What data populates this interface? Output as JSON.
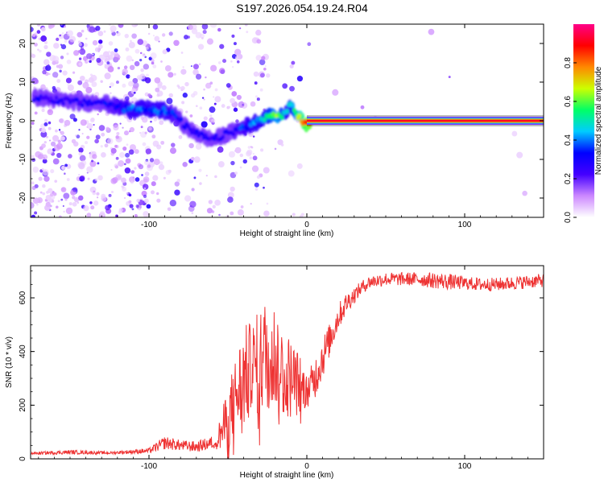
{
  "figure_title": "S197.2026.054.19.24.R04",
  "chart_data": [
    {
      "type": "heatmap",
      "title": "S197.2026.054.19.24.R04",
      "xlabel": "Height of straight line (km)",
      "ylabel": "Frequency (Hz)",
      "xlim": [
        -175,
        150
      ],
      "ylim": [
        -25,
        25
      ],
      "xticks": [
        -100,
        0,
        100
      ],
      "yticks": [
        -20,
        -10,
        0,
        10,
        20
      ],
      "colorbar": {
        "label": "Normalized spectral amplitude",
        "range": [
          0,
          1
        ],
        "ticks": [
          0.0,
          0.2,
          0.4,
          0.6,
          0.8
        ],
        "tick_labels": [
          "0.0",
          "0.2",
          "0.4",
          "0.6",
          "0.8"
        ],
        "colormap": [
          "#ffffff",
          "#cc88ff",
          "#4400ff",
          "#0000ff",
          "#00ccff",
          "#00ff66",
          "#ccff00",
          "#ff8800",
          "#ff0000",
          "#ff0088"
        ]
      },
      "ridge": {
        "x": [
          -170,
          -160,
          -150,
          -140,
          -132,
          -120,
          -110,
          -100,
          -90,
          -84,
          -78,
          -72,
          -66,
          -60,
          -54,
          -48,
          -42,
          -36,
          -30,
          -26,
          -22,
          -18,
          -14,
          -10,
          -6,
          -2,
          0,
          5,
          20,
          50,
          100,
          150
        ],
        "freq": [
          6,
          5.5,
          5,
          4.5,
          5,
          3.5,
          3,
          3,
          2.5,
          1.5,
          -1,
          -3,
          -4,
          -5,
          -4,
          -3,
          -2,
          -1,
          0,
          1,
          1.5,
          1,
          2,
          4,
          1.5,
          -0.5,
          -1,
          0,
          0,
          0,
          0,
          0
        ],
        "amplitude": [
          0.25,
          0.25,
          0.25,
          0.25,
          0.25,
          0.3,
          0.35,
          0.35,
          0.35,
          0.3,
          0.25,
          0.25,
          0.25,
          0.25,
          0.25,
          0.25,
          0.3,
          0.35,
          0.4,
          0.45,
          0.55,
          0.6,
          0.4,
          0.4,
          0.6,
          0.8,
          0.85,
          0.9,
          0.9,
          0.9,
          0.9,
          0.9
        ]
      }
    },
    {
      "type": "line",
      "xlabel": "Height of straight line (km)",
      "ylabel": "SNR (10 * v/v)",
      "xlim": [
        -175,
        150
      ],
      "ylim": [
        0,
        720
      ],
      "xticks": [
        -100,
        0,
        100
      ],
      "yticks": [
        0,
        200,
        400,
        600
      ],
      "line_color": "#ee3333",
      "series": [
        {
          "name": "SNR",
          "x": [
            -175,
            -150,
            -125,
            -100,
            -90,
            -80,
            -70,
            -60,
            -55,
            -50,
            -45,
            -40,
            -35,
            -30,
            -25,
            -20,
            -15,
            -10,
            -5,
            0,
            5,
            10,
            15,
            20,
            25,
            30,
            35,
            40,
            50,
            60,
            70,
            80,
            90,
            100,
            110,
            120,
            130,
            140,
            150
          ],
          "y": [
            20,
            25,
            22,
            30,
            60,
            50,
            45,
            60,
            90,
            150,
            230,
            300,
            330,
            360,
            400,
            380,
            320,
            300,
            280,
            250,
            300,
            380,
            450,
            530,
            580,
            610,
            640,
            660,
            670,
            670,
            670,
            665,
            660,
            655,
            650,
            650,
            655,
            660,
            665
          ],
          "noise": [
            5,
            8,
            5,
            10,
            25,
            20,
            20,
            25,
            60,
            120,
            160,
            200,
            180,
            200,
            220,
            200,
            180,
            150,
            120,
            60,
            80,
            80,
            60,
            50,
            40,
            30,
            25,
            25,
            25,
            25,
            25,
            30,
            30,
            25,
            25,
            25,
            25,
            25,
            25
          ]
        }
      ]
    }
  ]
}
